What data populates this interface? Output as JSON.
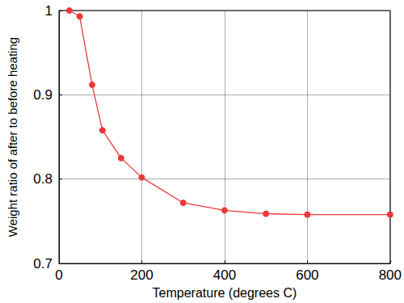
{
  "chart_data": {
    "type": "line",
    "x_label": "Temperature (degrees C)",
    "y_label": "Weight ratio of after to before heating",
    "x": [
      25,
      50,
      80,
      105,
      150,
      200,
      300,
      400,
      500,
      600,
      800
    ],
    "values": [
      1.0,
      0.993,
      0.912,
      0.858,
      0.825,
      0.802,
      0.772,
      0.763,
      0.759,
      0.758,
      0.758
    ],
    "color": "#e8383a",
    "marker": "circle",
    "line_style": "solid",
    "xlim": [
      0,
      800
    ],
    "xticks": [
      0,
      200,
      400,
      600,
      800
    ],
    "ylim": [
      0.7,
      1
    ],
    "yticks": [
      0.7,
      0.8,
      0.9,
      1
    ],
    "grid": true
  }
}
